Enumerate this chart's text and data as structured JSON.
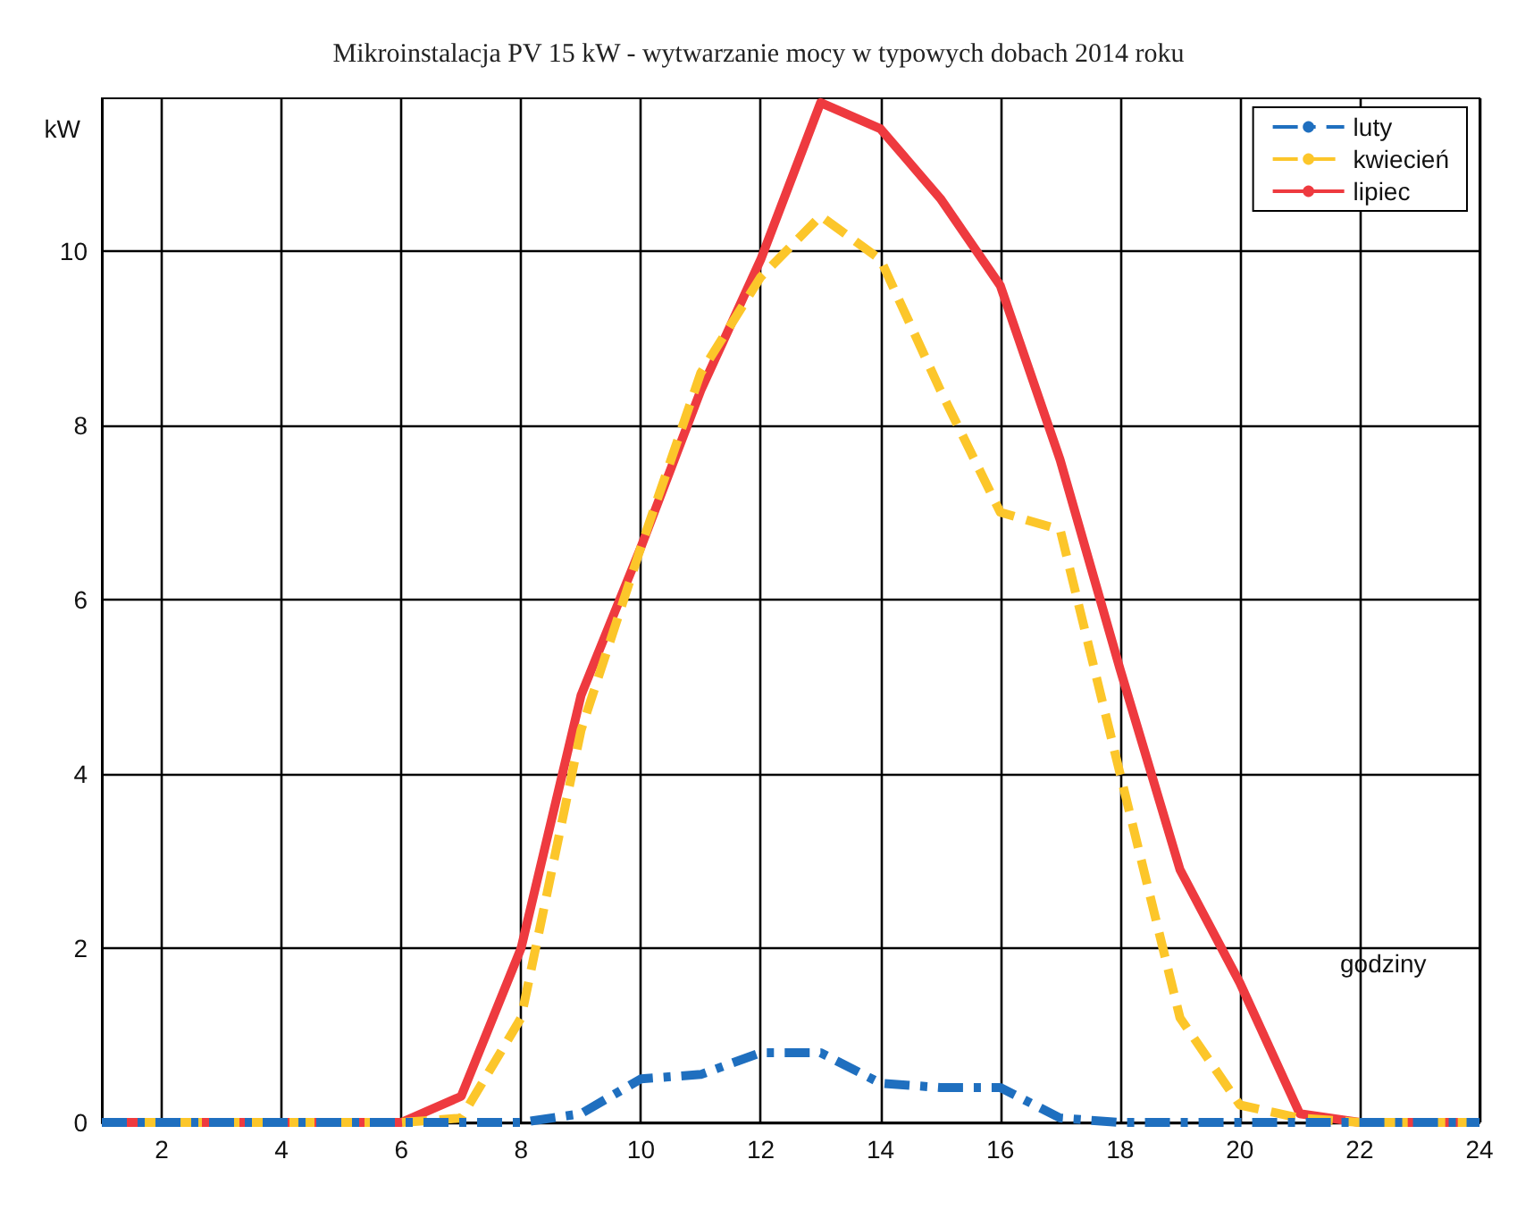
{
  "chart_data": {
    "type": "line",
    "title": "Mikroinstalacja PV 15 kW - wytwarzanie mocy w typowych dobach 2014 roku",
    "xlabel": "godziny",
    "ylabel": "kW",
    "x": [
      1,
      2,
      3,
      4,
      5,
      6,
      7,
      8,
      9,
      10,
      11,
      12,
      13,
      14,
      15,
      16,
      17,
      18,
      19,
      20,
      21,
      22,
      23,
      24
    ],
    "series": [
      {
        "name": "luty",
        "color": "#1f6fbf",
        "line_style": "dashdot",
        "values": [
          0,
          0,
          0,
          0,
          0,
          0,
          0,
          0,
          0.1,
          0.5,
          0.55,
          0.8,
          0.8,
          0.45,
          0.4,
          0.4,
          0.05,
          0,
          0,
          0,
          0,
          0,
          0,
          0
        ]
      },
      {
        "name": "kwiecień",
        "color": "#fcc62a",
        "line_style": "dashed",
        "values": [
          0,
          0,
          0,
          0,
          0,
          0,
          0.05,
          1.2,
          4.5,
          6.6,
          8.6,
          9.7,
          10.4,
          9.9,
          8.4,
          7.0,
          6.8,
          4.0,
          1.2,
          0.2,
          0.05,
          0,
          0,
          0
        ]
      },
      {
        "name": "lipiec",
        "color": "#ee3a3f",
        "line_style": "solid",
        "values": [
          0,
          0,
          0,
          0,
          0,
          0,
          0.3,
          2.0,
          4.9,
          6.6,
          8.4,
          9.9,
          11.7,
          11.4,
          10.6,
          9.6,
          7.6,
          5.2,
          2.9,
          1.6,
          0.1,
          0,
          0,
          0
        ]
      }
    ],
    "xlim": [
      1,
      24
    ],
    "xticks": [
      2,
      4,
      6,
      8,
      10,
      12,
      14,
      16,
      18,
      20,
      22,
      24
    ],
    "ylim": [
      0,
      11.75
    ],
    "yticks": [
      0,
      2,
      4,
      6,
      8,
      10
    ],
    "grid": true,
    "legend": "top right",
    "marker": "none"
  }
}
